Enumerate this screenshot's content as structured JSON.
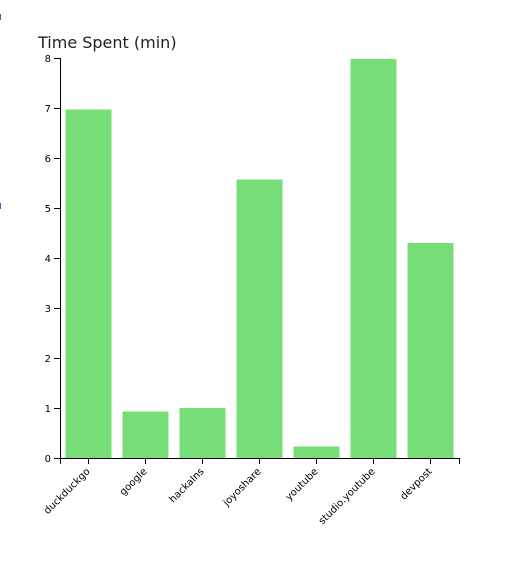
{
  "chart_data": {
    "type": "bar",
    "title": "Time Spent (min)",
    "categories": [
      "duckduckgo",
      "google",
      "hackaIns",
      "joyoshare",
      "youtube",
      "studio.youtube",
      "devpost"
    ],
    "values": [
      6.97,
      0.93,
      1.0,
      5.57,
      0.23,
      7.98,
      4.3
    ],
    "ylim": [
      0,
      8
    ],
    "y_ticks": [
      "0",
      "1",
      "2",
      "3",
      "4",
      "5",
      "6",
      "7",
      "8"
    ],
    "xlabel": "",
    "ylabel": "",
    "grid": false,
    "legend": "none",
    "bar_color": "#77dd77"
  }
}
